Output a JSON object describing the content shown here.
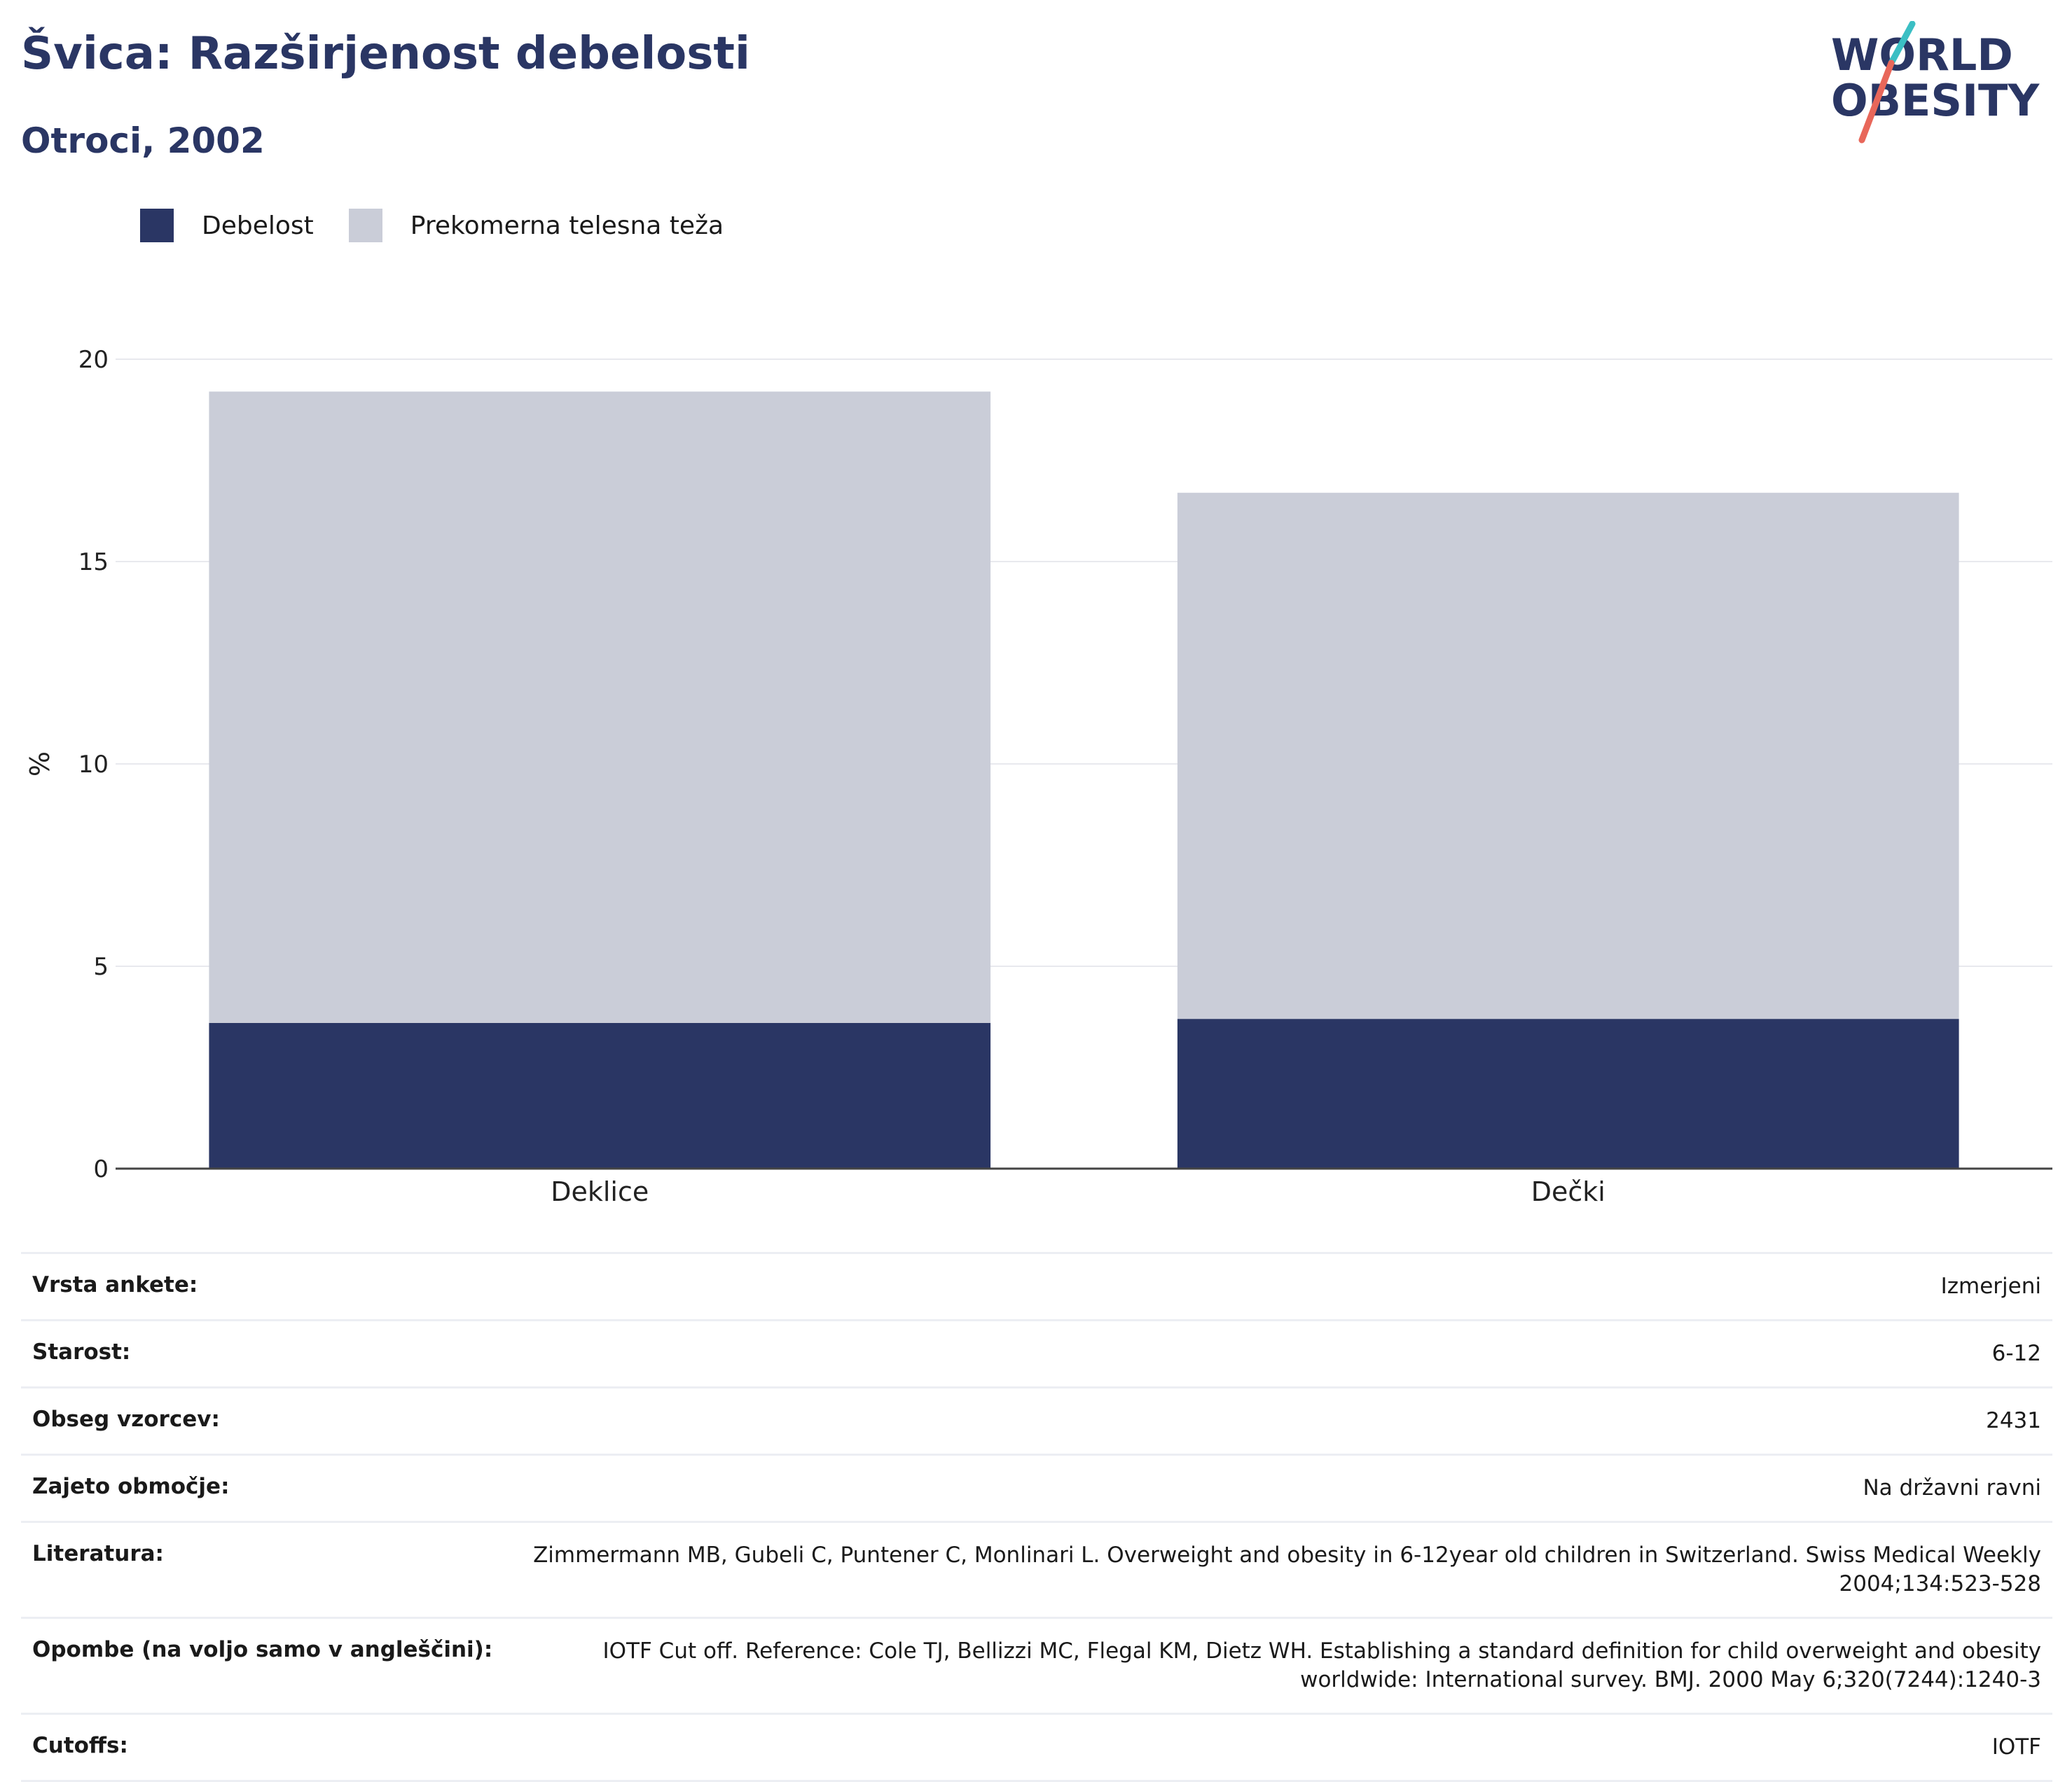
{
  "header": {
    "title": "Švica: Razširjenost debelosti",
    "subtitle": "Otroci, 2002"
  },
  "logo": {
    "line1": "WORLD",
    "line2": "OBESITY"
  },
  "colors": {
    "obesity": "#2a3664",
    "overweight": "#cacdd8",
    "title": "#2a3664",
    "accent_teal": "#3bbfc4",
    "accent_red": "#e8675a"
  },
  "chart_data": {
    "type": "bar",
    "stacked": true,
    "categories": [
      "Deklice",
      "Dečki"
    ],
    "series": [
      {
        "name": "Debelost",
        "values": [
          3.6,
          3.7
        ]
      },
      {
        "name": "Prekomerna telesna teža",
        "values": [
          15.6,
          13.0
        ]
      }
    ],
    "ylabel": "%",
    "ylim": [
      0,
      20
    ],
    "yticks": [
      0,
      5,
      10,
      15,
      20
    ],
    "grid": true,
    "legend": "top-left"
  },
  "info": [
    {
      "key": "Vrsta ankete:",
      "value": "Izmerjeni"
    },
    {
      "key": "Starost:",
      "value": "6-12"
    },
    {
      "key": "Obseg vzorcev:",
      "value": "2431"
    },
    {
      "key": "Zajeto območje:",
      "value": "Na državni ravni"
    },
    {
      "key": "Literatura:",
      "value": "Zimmermann MB, Gubeli C, Puntener C, Monlinari L. Overweight and obesity in 6-12year old children in Switzerland. Swiss Medical Weekly 2004;134:523-528"
    },
    {
      "key": "Opombe (na voljo samo v angleščini):",
      "value": "IOTF Cut off. Reference: Cole TJ, Bellizzi MC, Flegal KM, Dietz WH. Establishing a standard definition for child overweight and obesity worldwide: International survey. BMJ. 2000 May 6;320(7244):1240-3"
    },
    {
      "key": "Cutoffs:",
      "value": "IOTF"
    }
  ]
}
